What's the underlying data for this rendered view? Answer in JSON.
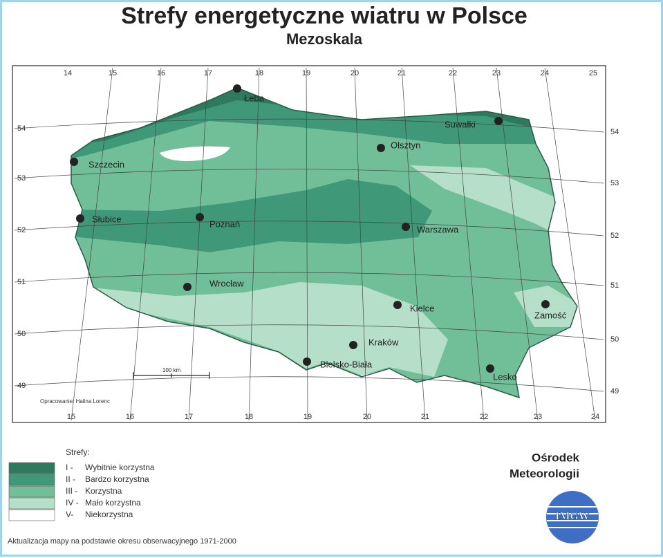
{
  "header": {
    "title": "Strefy energetyczne wiatru w Polsce",
    "subtitle": "Mezoskala"
  },
  "map": {
    "longitude_labels_top": [
      14,
      15,
      16,
      17,
      18,
      19,
      20,
      21,
      22,
      23,
      24,
      25
    ],
    "longitude_labels_bottom": [
      15,
      16,
      17,
      18,
      19,
      20,
      21,
      22,
      23,
      24
    ],
    "latitude_labels_left": [
      54,
      53,
      52,
      51,
      50,
      49
    ],
    "latitude_labels_right": [
      54,
      53,
      52,
      51,
      50,
      49
    ],
    "cities": [
      "Łeba",
      "Suwałki",
      "Olsztyn",
      "Szczecin",
      "Słubice",
      "Poznań",
      "Warszawa",
      "Wrocław",
      "Kielce",
      "Zamość",
      "Kraków",
      "Bielsko-Biała",
      "Lesko"
    ],
    "scale_label": "100 km",
    "credit": "Opracowanie: Halina Lorenc"
  },
  "legend": {
    "title": "Strefy:",
    "items": [
      {
        "code": "I -",
        "label": "Wybitnie korzystna",
        "color": "#2f7a5e"
      },
      {
        "code": "II -",
        "label": "Bardzo korzystna",
        "color": "#3f9878"
      },
      {
        "code": "III -",
        "label": "Korzystna",
        "color": "#70bf98"
      },
      {
        "code": "IV -",
        "label": "Mało korzystna",
        "color": "#b6dfc9"
      },
      {
        "code": "V-",
        "label": "Niekorzystna",
        "color": "#ffffff"
      }
    ]
  },
  "institution": {
    "lines": [
      "Ośrodek",
      "Meteorologii"
    ],
    "logo": "IMGW"
  },
  "footer": "Aktualizacja mapy na podstawie okresu obserwacyjnego 1971-2000"
}
